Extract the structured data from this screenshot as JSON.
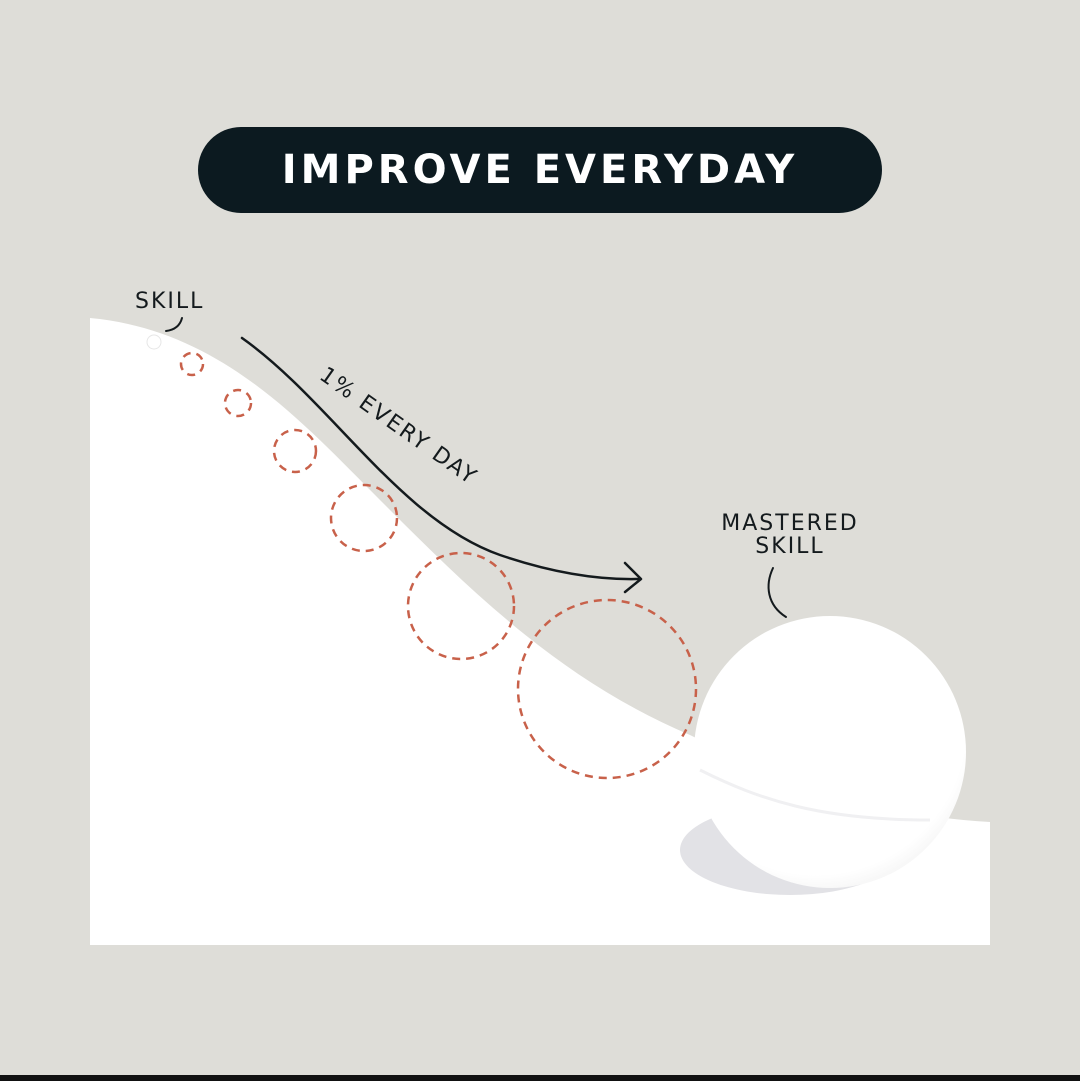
{
  "title": "IMPROVE EVERYDAY",
  "labels": {
    "start": "SKILL",
    "path": "1% EVERY DAY",
    "end_line1": "MASTERED",
    "end_line2": "SKILL"
  },
  "colors": {
    "background": "#deddd8",
    "pill": "#0c1a20",
    "snow": "#ffffff",
    "dashed_circle": "#c8614a",
    "ink": "#141a1d"
  }
}
